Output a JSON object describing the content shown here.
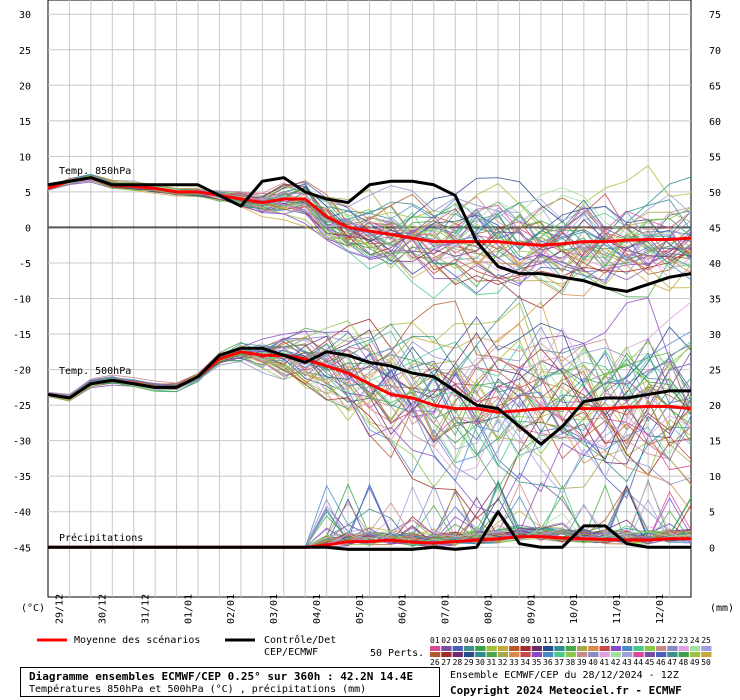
{
  "chart_data": {
    "type": "line",
    "left_axis": {
      "unit": "(°C)",
      "ticks": [
        30,
        25,
        20,
        15,
        10,
        5,
        0,
        -5,
        -10,
        -15,
        -20,
        -25,
        -30,
        -35,
        -40,
        -45
      ],
      "ylim": [
        -52,
        32
      ]
    },
    "right_axis": {
      "unit": "(mm)",
      "ticks": [
        75,
        70,
        65,
        60,
        55,
        50,
        45,
        40,
        35,
        30,
        25,
        20,
        15,
        10,
        5,
        0
      ]
    },
    "x_dates": [
      "29/12",
      "30/12",
      "31/12",
      "01/01",
      "02/01",
      "03/01",
      "04/01",
      "05/01",
      "06/01",
      "07/01",
      "08/01",
      "09/01",
      "10/01",
      "11/01",
      "12/01"
    ],
    "panel_labels": {
      "t850": "Temp. 850hPa",
      "t500": "Temp. 500hPa",
      "precip": "Précipitations"
    },
    "x_hours": [
      0,
      12,
      24,
      36,
      48,
      60,
      72,
      84,
      96,
      108,
      120,
      132,
      144,
      156,
      168,
      180,
      192,
      204,
      216,
      228,
      240,
      252,
      264,
      276,
      288,
      300,
      312,
      324,
      336,
      348,
      360
    ],
    "series": [
      {
        "name": "Moyenne des scénarios",
        "panel": "t850",
        "color": "#ff0000",
        "values": [
          5.5,
          6.5,
          7,
          6,
          5.8,
          5.5,
          5,
          5,
          4.5,
          4,
          3.5,
          4,
          4,
          1.5,
          0,
          -0.5,
          -1,
          -1.5,
          -2,
          -2,
          -2,
          -2,
          -2.3,
          -2.5,
          -2.3,
          -2,
          -2,
          -1.8,
          -1.7,
          -1.7,
          -1.5
        ]
      },
      {
        "name": "Contrôle/Det CEP/ECMWF",
        "panel": "t850",
        "color": "#000000",
        "values": [
          6,
          6.5,
          7,
          6,
          6,
          6,
          6,
          6,
          4.5,
          3,
          6.5,
          7,
          5,
          4,
          3.5,
          6,
          6.5,
          6.5,
          6,
          4.5,
          -2,
          -5.5,
          -6.5,
          -6.5,
          -7,
          -7.5,
          -8.5,
          -9,
          -8,
          -7,
          -6.5
        ]
      },
      {
        "name": "Moyenne des scénarios",
        "panel": "t500",
        "color": "#ff0000",
        "values": [
          -23.5,
          -24,
          -22,
          -21.5,
          -22,
          -22.5,
          -22.5,
          -21,
          -18.5,
          -17.5,
          -18,
          -18,
          -18.5,
          -19.5,
          -20.5,
          -22,
          -23.5,
          -24,
          -25,
          -25.5,
          -25.5,
          -26,
          -25.8,
          -25.5,
          -25.5,
          -25.5,
          -25.5,
          -25.3,
          -25.2,
          -25.2,
          -25.5
        ]
      },
      {
        "name": "Contrôle/Det CEP/ECMWF",
        "panel": "t500",
        "color": "#000000",
        "values": [
          -23.5,
          -24,
          -22,
          -21.5,
          -22,
          -22.5,
          -22.5,
          -21,
          -18,
          -17,
          -17,
          -18,
          -19,
          -17.5,
          -18,
          -19,
          -19.5,
          -20.5,
          -21,
          -23,
          -25,
          -25.5,
          -28,
          -30.5,
          -28,
          -24.5,
          -24,
          -24,
          -23.5,
          -23,
          -23
        ]
      },
      {
        "name": "Moyenne des scénarios",
        "panel": "precip",
        "color": "#ff0000",
        "values": [
          0,
          0,
          0,
          0,
          0,
          0,
          0,
          0,
          0,
          0,
          0,
          0,
          0,
          0.3,
          0.8,
          0.8,
          1,
          0.7,
          0.6,
          0.8,
          1,
          1.2,
          1.5,
          1.5,
          1.3,
          1.2,
          1.1,
          1,
          1,
          1.2,
          1.2
        ]
      },
      {
        "name": "Contrôle/Det CEP/ECMWF",
        "panel": "precip",
        "color": "#000000",
        "values": [
          0,
          0,
          0,
          0,
          0,
          0,
          0,
          0,
          0,
          0,
          0,
          0,
          0,
          0,
          -0.3,
          -0.3,
          -0.3,
          -0.3,
          0,
          -0.3,
          0,
          5,
          0.5,
          0,
          0,
          3,
          3,
          0.5,
          0,
          0,
          0
        ]
      }
    ],
    "member_count": 50,
    "grid": true,
    "legend_position": "bottom"
  },
  "legend": {
    "mean_label": "Moyenne des scénarios",
    "control_label_1": "Contrôle/Det",
    "control_label_2": "CEP/ECMWF",
    "perts_label": "50 Perts.",
    "members_row1": [
      "01",
      "02",
      "03",
      "04",
      "05",
      "06",
      "07",
      "08",
      "09",
      "10",
      "11",
      "12",
      "13",
      "14",
      "15",
      "16",
      "17",
      "18",
      "19",
      "20",
      "21",
      "22",
      "23",
      "24",
      "25"
    ],
    "members_row2": [
      "26",
      "27",
      "28",
      "29",
      "30",
      "31",
      "32",
      "33",
      "34",
      "35",
      "36",
      "37",
      "38",
      "39",
      "40",
      "41",
      "42",
      "43",
      "44",
      "45",
      "46",
      "47",
      "48",
      "49",
      "50"
    ],
    "colors": [
      "#d94a9a",
      "#7a4ea3",
      "#4b5fb8",
      "#3f8f8f",
      "#3aa04a",
      "#9ec23a",
      "#c8a83a",
      "#b35a2a",
      "#a12a2a",
      "#6e2a6e",
      "#2a4a8e",
      "#2a8e8e",
      "#4aa84a",
      "#a8a84a",
      "#d88a4a",
      "#c84a4a",
      "#8a4ac8",
      "#4a8ac8",
      "#4ac88a",
      "#8ac84a",
      "#c88a8a",
      "#8a8ac8",
      "#e0a0e0",
      "#a0e0a0",
      "#a0a0e0"
    ]
  },
  "footer": {
    "title_line": "Diagramme ensembles ECMWF/CEP 0.25° sur 360h : 42.2N 14.4E",
    "subtitle_line": "Températures 850hPa et 500hPa (°C) , précipitations (mm)",
    "run_info": "Ensemble ECMWF/CEP du 28/12/2024 - 12Z",
    "copyright": "Copyright 2024 Meteociel.fr - ECMWF"
  }
}
